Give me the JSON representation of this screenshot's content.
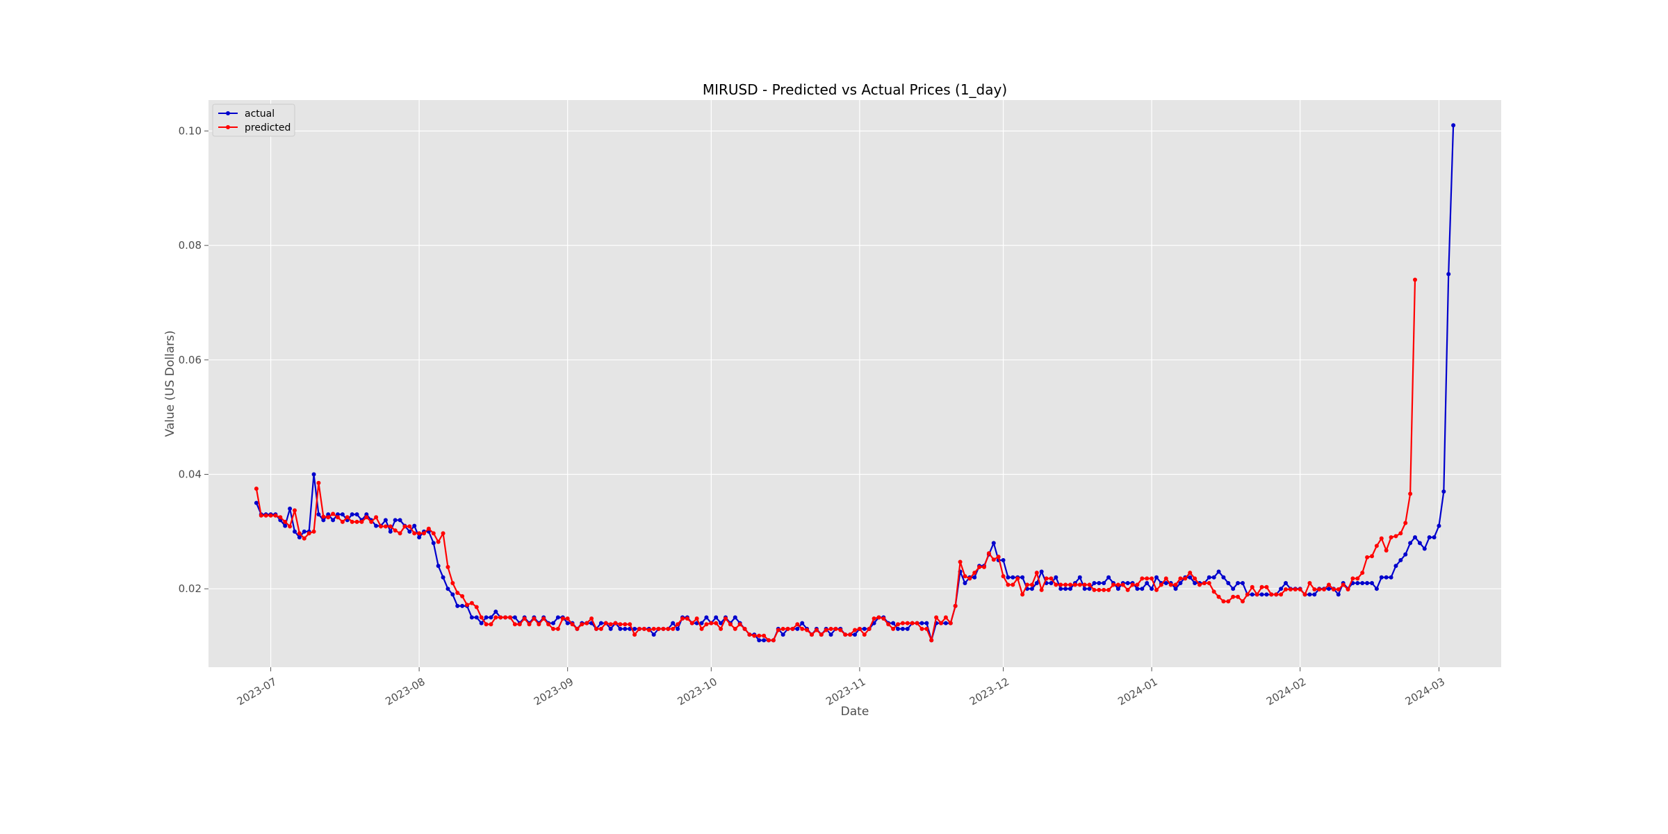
{
  "chart_data": {
    "type": "line",
    "title": "MIRUSD - Predicted vs Actual Prices (1_day)",
    "xlabel": "Date",
    "ylabel": "Value (US Dollars)",
    "xlim": [
      "2023-06-18",
      "2024-03-14"
    ],
    "ylim": [
      0.0063,
      0.1054
    ],
    "x_ticks": [
      {
        "date": "2023-07-01",
        "label": "2023-07"
      },
      {
        "date": "2023-08-01",
        "label": "2023-08"
      },
      {
        "date": "2023-09-01",
        "label": "2023-09"
      },
      {
        "date": "2023-10-01",
        "label": "2023-10"
      },
      {
        "date": "2023-11-01",
        "label": "2023-11"
      },
      {
        "date": "2023-12-01",
        "label": "2023-12"
      },
      {
        "date": "2024-01-01",
        "label": "2024-01"
      },
      {
        "date": "2024-02-01",
        "label": "2024-02"
      },
      {
        "date": "2024-03-01",
        "label": "2024-03"
      }
    ],
    "y_ticks": [
      {
        "value": 0.02,
        "label": "0.02"
      },
      {
        "value": 0.04,
        "label": "0.04"
      },
      {
        "value": 0.06,
        "label": "0.06"
      },
      {
        "value": 0.08,
        "label": "0.08"
      },
      {
        "value": 0.1,
        "label": "0.10"
      }
    ],
    "grid": true,
    "legend_position": "top-left",
    "x_start": "2023-06-28",
    "series": [
      {
        "name": "actual",
        "color": "#0000cc",
        "values": [
          0.035,
          0.033,
          0.033,
          0.033,
          0.033,
          0.032,
          0.031,
          0.034,
          0.03,
          0.029,
          0.03,
          0.03,
          0.04,
          0.033,
          0.032,
          0.033,
          0.032,
          0.033,
          0.033,
          0.032,
          0.033,
          0.033,
          0.032,
          0.033,
          0.032,
          0.031,
          0.031,
          0.032,
          0.03,
          0.032,
          0.032,
          0.031,
          0.03,
          0.031,
          0.029,
          0.03,
          0.03,
          0.028,
          0.024,
          0.022,
          0.02,
          0.019,
          0.017,
          0.017,
          0.017,
          0.015,
          0.015,
          0.014,
          0.015,
          0.015,
          0.016,
          0.015,
          0.015,
          0.015,
          0.015,
          0.014,
          0.015,
          0.014,
          0.015,
          0.014,
          0.015,
          0.014,
          0.014,
          0.015,
          0.015,
          0.014,
          0.014,
          0.013,
          0.014,
          0.014,
          0.014,
          0.013,
          0.014,
          0.014,
          0.013,
          0.014,
          0.013,
          0.013,
          0.013,
          0.013,
          0.013,
          0.013,
          0.013,
          0.012,
          0.013,
          0.013,
          0.013,
          0.014,
          0.013,
          0.015,
          0.015,
          0.014,
          0.014,
          0.014,
          0.015,
          0.014,
          0.015,
          0.014,
          0.015,
          0.014,
          0.015,
          0.014,
          0.013,
          0.012,
          0.012,
          0.011,
          0.011,
          0.011,
          0.011,
          0.013,
          0.012,
          0.013,
          0.013,
          0.013,
          0.014,
          0.013,
          0.012,
          0.013,
          0.012,
          0.013,
          0.012,
          0.013,
          0.013,
          0.012,
          0.012,
          0.012,
          0.013,
          0.013,
          0.013,
          0.014,
          0.015,
          0.015,
          0.014,
          0.014,
          0.013,
          0.013,
          0.013,
          0.014,
          0.014,
          0.014,
          0.014,
          0.011,
          0.014,
          0.014,
          0.014,
          0.014,
          0.017,
          0.023,
          0.021,
          0.022,
          0.022,
          0.024,
          0.024,
          0.026,
          0.028,
          0.025,
          0.025,
          0.022,
          0.022,
          0.022,
          0.022,
          0.02,
          0.02,
          0.021,
          0.023,
          0.021,
          0.021,
          0.022,
          0.02,
          0.02,
          0.02,
          0.021,
          0.022,
          0.02,
          0.02,
          0.021,
          0.021,
          0.021,
          0.022,
          0.021,
          0.02,
          0.021,
          0.021,
          0.021,
          0.02,
          0.02,
          0.021,
          0.02,
          0.022,
          0.021,
          0.021,
          0.021,
          0.02,
          0.021,
          0.022,
          0.022,
          0.021,
          0.021,
          0.021,
          0.022,
          0.022,
          0.023,
          0.022,
          0.021,
          0.02,
          0.021,
          0.021,
          0.019,
          0.019,
          0.019,
          0.019,
          0.019,
          0.019,
          0.019,
          0.02,
          0.021,
          0.02,
          0.02,
          0.02,
          0.019,
          0.019,
          0.019,
          0.02,
          0.02,
          0.02,
          0.02,
          0.019,
          0.021,
          0.02,
          0.021,
          0.021,
          0.021,
          0.021,
          0.021,
          0.02,
          0.022,
          0.022,
          0.022,
          0.024,
          0.025,
          0.026,
          0.028,
          0.029,
          0.028,
          0.027,
          0.029,
          0.029,
          0.031,
          0.037,
          0.075,
          0.101
        ]
      },
      {
        "name": "predicted",
        "color": "#ff0000",
        "values": [
          0.0375,
          0.0328,
          0.0328,
          0.0328,
          0.0328,
          0.0325,
          0.0317,
          0.0309,
          0.0337,
          0.0297,
          0.0288,
          0.0297,
          0.03,
          0.0385,
          0.0326,
          0.0325,
          0.0331,
          0.0325,
          0.0317,
          0.0325,
          0.0317,
          0.0317,
          0.0317,
          0.0325,
          0.0317,
          0.0325,
          0.0309,
          0.0309,
          0.0309,
          0.0302,
          0.0297,
          0.0309,
          0.0309,
          0.0297,
          0.0297,
          0.0297,
          0.0305,
          0.0297,
          0.0282,
          0.0297,
          0.0238,
          0.021,
          0.0193,
          0.0187,
          0.0172,
          0.0175,
          0.0168,
          0.015,
          0.0138,
          0.0138,
          0.015,
          0.015,
          0.015,
          0.015,
          0.0138,
          0.0138,
          0.0148,
          0.0138,
          0.0148,
          0.0138,
          0.0148,
          0.0138,
          0.013,
          0.013,
          0.0148,
          0.0148,
          0.0138,
          0.013,
          0.0138,
          0.014,
          0.0148,
          0.013,
          0.013,
          0.014,
          0.0138,
          0.014,
          0.0138,
          0.0138,
          0.0138,
          0.012,
          0.013,
          0.013,
          0.0128,
          0.013,
          0.013,
          0.013,
          0.013,
          0.013,
          0.0138,
          0.0148,
          0.0148,
          0.014,
          0.0148,
          0.013,
          0.0138,
          0.014,
          0.014,
          0.013,
          0.0148,
          0.0138,
          0.013,
          0.0138,
          0.013,
          0.012,
          0.0118,
          0.0118,
          0.0118,
          0.011,
          0.011,
          0.0128,
          0.013,
          0.013,
          0.013,
          0.0138,
          0.013,
          0.0128,
          0.012,
          0.0128,
          0.012,
          0.0128,
          0.013,
          0.013,
          0.0128,
          0.012,
          0.012,
          0.0128,
          0.013,
          0.012,
          0.013,
          0.0148,
          0.015,
          0.0148,
          0.0138,
          0.013,
          0.0138,
          0.014,
          0.014,
          0.014,
          0.014,
          0.013,
          0.013,
          0.011,
          0.015,
          0.014,
          0.015,
          0.014,
          0.017,
          0.0247,
          0.0222,
          0.0218,
          0.0228,
          0.0238,
          0.0238,
          0.0262,
          0.0251,
          0.0256,
          0.0222,
          0.0207,
          0.0207,
          0.0218,
          0.019,
          0.0207,
          0.0207,
          0.0228,
          0.0198,
          0.0218,
          0.0218,
          0.0207,
          0.0207,
          0.0207,
          0.0207,
          0.0207,
          0.0207,
          0.0207,
          0.0207,
          0.0198,
          0.0198,
          0.0198,
          0.0198,
          0.0207,
          0.0207,
          0.0207,
          0.0198,
          0.0207,
          0.0207,
          0.0218,
          0.0218,
          0.0218,
          0.0198,
          0.0207,
          0.0218,
          0.0207,
          0.0207,
          0.0218,
          0.0218,
          0.0228,
          0.0218,
          0.0207,
          0.021,
          0.021,
          0.0195,
          0.0186,
          0.0178,
          0.0178,
          0.0186,
          0.0186,
          0.0178,
          0.019,
          0.0203,
          0.019,
          0.0203,
          0.0203,
          0.019,
          0.019,
          0.019,
          0.0199,
          0.0199,
          0.0199,
          0.0199,
          0.019,
          0.021,
          0.0199,
          0.0199,
          0.0199,
          0.0207,
          0.0199,
          0.0199,
          0.0207,
          0.0199,
          0.0218,
          0.0218,
          0.0228,
          0.0255,
          0.0257,
          0.0275,
          0.0288,
          0.0267,
          0.029,
          0.0292,
          0.0297,
          0.0315,
          0.0366,
          0.074
        ]
      }
    ]
  }
}
